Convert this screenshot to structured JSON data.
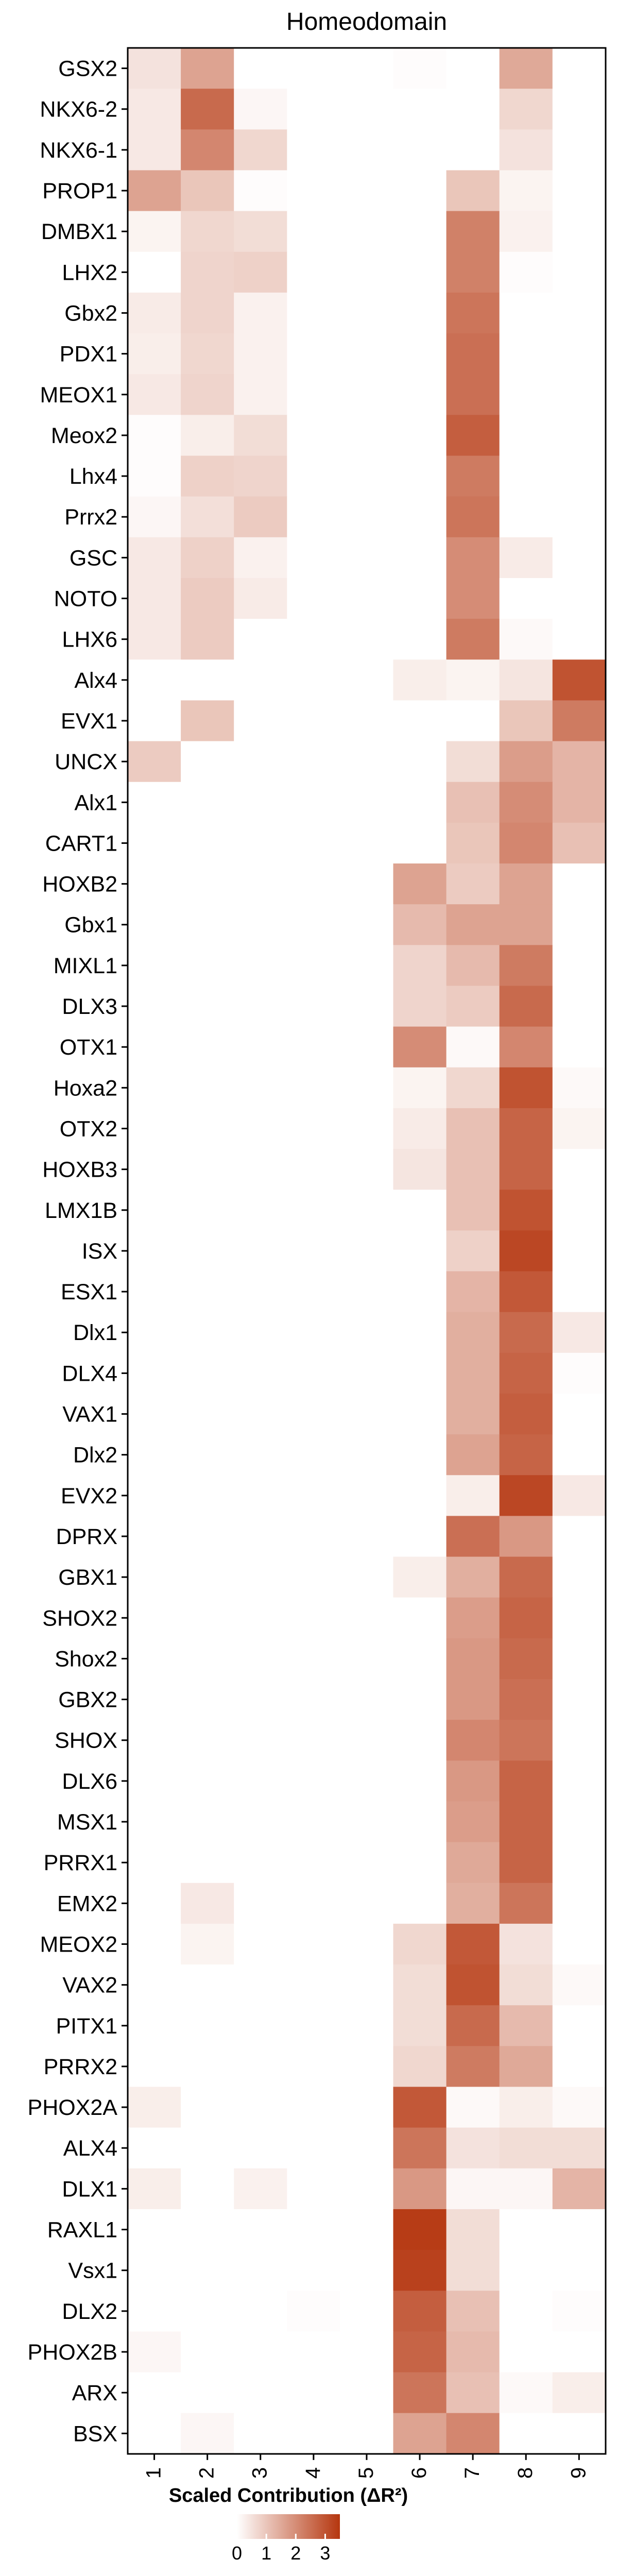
{
  "chart_data": {
    "type": "heatmap",
    "title": "Homeodomain",
    "xlabel": "",
    "ylabel": "",
    "x": [
      "1",
      "2",
      "3",
      "4",
      "5",
      "6",
      "7",
      "8",
      "9"
    ],
    "y": [
      "GSX2",
      "NKX6-2",
      "NKX6-1",
      "PROP1",
      "DMBX1",
      "LHX2",
      "Gbx2",
      "PDX1",
      "MEOX1",
      "Meox2",
      "Lhx4",
      "Prrx2",
      "GSC",
      "NOTO",
      "LHX6",
      "Alx4",
      "EVX1",
      "UNCX",
      "Alx1",
      "CART1",
      "HOXB2",
      "Gbx1",
      "MIXL1",
      "DLX3",
      "OTX1",
      "Hoxa2",
      "OTX2",
      "HOXB3",
      "LMX1B",
      "ISX",
      "ESX1",
      "Dlx1",
      "DLX4",
      "VAX1",
      "Dlx2",
      "EVX2",
      "DPRX",
      "GBX1",
      "SHOX2",
      "Shox2",
      "GBX2",
      "SHOX",
      "DLX6",
      "MSX1",
      "PRRX1",
      "EMX2",
      "MEOX2",
      "VAX2",
      "PITX1",
      "PRRX2",
      "PHOX2A",
      "ALX4",
      "DLX1",
      "RAXL1",
      "Vsx1",
      "DLX2",
      "PHOX2B",
      "ARX",
      "BSX"
    ],
    "values": [
      [
        0.5,
        1.6,
        0,
        0,
        0,
        0.05,
        0,
        1.5,
        0
      ],
      [
        0.4,
        2.6,
        0.15,
        0,
        0,
        0,
        0,
        0.7,
        0
      ],
      [
        0.4,
        2.1,
        0.7,
        0,
        0,
        0,
        0,
        0.5,
        0
      ],
      [
        1.6,
        1.0,
        0.05,
        0,
        0,
        0,
        1.0,
        0.2,
        0
      ],
      [
        0.2,
        0.7,
        0.6,
        0,
        0,
        0,
        2.2,
        0.25,
        0
      ],
      [
        0.0,
        0.75,
        0.8,
        0,
        0,
        0,
        2.2,
        0.05,
        0
      ],
      [
        0.35,
        0.75,
        0.25,
        0,
        0,
        0,
        2.4,
        0,
        0
      ],
      [
        0.3,
        0.7,
        0.25,
        0,
        0,
        0,
        2.5,
        0,
        0
      ],
      [
        0.4,
        0.75,
        0.25,
        0,
        0,
        0,
        2.5,
        0,
        0
      ],
      [
        0.05,
        0.3,
        0.6,
        0,
        0,
        0,
        2.8,
        0,
        0
      ],
      [
        0.05,
        0.8,
        0.75,
        0,
        0,
        0,
        2.3,
        0,
        0
      ],
      [
        0.15,
        0.55,
        0.9,
        0,
        0,
        0,
        2.4,
        0,
        0
      ],
      [
        0.4,
        0.8,
        0.25,
        0,
        0,
        0,
        2.0,
        0.35,
        0
      ],
      [
        0.4,
        0.9,
        0.35,
        0,
        0,
        0,
        2.0,
        0,
        0
      ],
      [
        0.4,
        0.9,
        0,
        0,
        0,
        0,
        2.3,
        0.1,
        0
      ],
      [
        0,
        0,
        0,
        0,
        0,
        0.3,
        0.2,
        0.45,
        3.0
      ],
      [
        0,
        1.0,
        0,
        0,
        0,
        0,
        0,
        1.0,
        2.3
      ],
      [
        0.9,
        0,
        0,
        0,
        0,
        0,
        0.6,
        1.7,
        1.3
      ],
      [
        0,
        0,
        0,
        0,
        0,
        0,
        1.1,
        2.0,
        1.3
      ],
      [
        0,
        0,
        0,
        0,
        0,
        0,
        1.0,
        2.1,
        1.1
      ],
      [
        0,
        0,
        0,
        0,
        0,
        1.6,
        0.9,
        1.6,
        0
      ],
      [
        0,
        0,
        0,
        0,
        0,
        1.2,
        1.6,
        1.6,
        0
      ],
      [
        0,
        0,
        0,
        0,
        0,
        0.75,
        1.2,
        2.3,
        0
      ],
      [
        0,
        0,
        0,
        0,
        0,
        0.75,
        0.9,
        2.6,
        0
      ],
      [
        0,
        0,
        0,
        0,
        0,
        2.0,
        0.1,
        2.1,
        0
      ],
      [
        0,
        0,
        0,
        0,
        0,
        0.2,
        0.7,
        3.0,
        0.1
      ],
      [
        0,
        0,
        0,
        0,
        0,
        0.35,
        1.1,
        2.7,
        0.2
      ],
      [
        0,
        0,
        0,
        0,
        0,
        0.45,
        1.1,
        2.7,
        0
      ],
      [
        0,
        0,
        0,
        0,
        0,
        0,
        1.1,
        3.0,
        0
      ],
      [
        0,
        0,
        0,
        0,
        0,
        0,
        0.8,
        3.2,
        0
      ],
      [
        0,
        0,
        0,
        0,
        0,
        0,
        1.3,
        2.9,
        0
      ],
      [
        0,
        0,
        0,
        0,
        0,
        0,
        1.4,
        2.6,
        0.4
      ],
      [
        0,
        0,
        0,
        0,
        0,
        0,
        1.4,
        2.7,
        0.05
      ],
      [
        0,
        0,
        0,
        0,
        0,
        0,
        1.4,
        2.8,
        0
      ],
      [
        0,
        0,
        0,
        0,
        0,
        0,
        1.6,
        2.7,
        0
      ],
      [
        0,
        0,
        0,
        0,
        0,
        0,
        0.3,
        3.2,
        0.4
      ],
      [
        0,
        0,
        0,
        0,
        0,
        0,
        2.5,
        1.8,
        0
      ],
      [
        0,
        0,
        0,
        0,
        0,
        0.3,
        1.4,
        2.6,
        0
      ],
      [
        0,
        0,
        0,
        0,
        0,
        0,
        1.7,
        2.7,
        0
      ],
      [
        0,
        0,
        0,
        0,
        0,
        0,
        1.8,
        2.6,
        0
      ],
      [
        0,
        0,
        0,
        0,
        0,
        0,
        1.8,
        2.5,
        0
      ],
      [
        0,
        0,
        0,
        0,
        0,
        0,
        2.1,
        2.4,
        0
      ],
      [
        0,
        0,
        0,
        0,
        0,
        0,
        1.8,
        2.7,
        0
      ],
      [
        0,
        0,
        0,
        0,
        0,
        0,
        1.7,
        2.7,
        0
      ],
      [
        0,
        0,
        0,
        0,
        0,
        0,
        1.5,
        2.7,
        0
      ],
      [
        0,
        0.4,
        0,
        0,
        0,
        0,
        1.4,
        2.4,
        0
      ],
      [
        0,
        0.2,
        0,
        0,
        0,
        0.7,
        2.9,
        0.5,
        0
      ],
      [
        0,
        0,
        0,
        0,
        0,
        0.6,
        3.0,
        0.6,
        0.1
      ],
      [
        0,
        0,
        0,
        0,
        0,
        0.6,
        2.6,
        1.2,
        0
      ],
      [
        0,
        0,
        0,
        0,
        0,
        0.7,
        2.3,
        1.5,
        0
      ],
      [
        0.3,
        0,
        0,
        0,
        0,
        2.9,
        0.1,
        0.3,
        0.1
      ],
      [
        0,
        0,
        0,
        0,
        0,
        2.4,
        0.5,
        0.6,
        0.6
      ],
      [
        0.3,
        0,
        0.25,
        0,
        0,
        1.8,
        0.15,
        0.15,
        1.3
      ],
      [
        0,
        0,
        0,
        0,
        0,
        3.4,
        0.6,
        0,
        0
      ],
      [
        0,
        0,
        0,
        0,
        0,
        3.3,
        0.6,
        0,
        0
      ],
      [
        0,
        0,
        0,
        0.05,
        0,
        2.8,
        1.1,
        0,
        0.05
      ],
      [
        0.15,
        0,
        0,
        0,
        0,
        2.7,
        1.2,
        0,
        0
      ],
      [
        0,
        0,
        0,
        0,
        0,
        2.4,
        1.1,
        0.1,
        0.3
      ],
      [
        0,
        0.15,
        0,
        0,
        0,
        1.6,
        2.1,
        0,
        0
      ]
    ],
    "color_low": "#ffffff",
    "color_high": "#b5360f",
    "legend": {
      "title": "Scaled Contribution (ΔR²)",
      "ticks": [
        "0",
        "1",
        "2",
        "3"
      ],
      "placement": "bottom"
    },
    "grid": false
  }
}
